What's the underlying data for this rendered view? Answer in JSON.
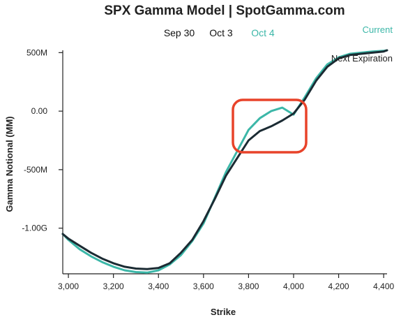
{
  "colors": {
    "current": "#3cb7a8",
    "next_expiration": "#1b2b33",
    "highlight": "#e8432a",
    "date_default": "#111111",
    "date_active": "#3cb7a8"
  },
  "header": {
    "title": "SPX Gamma Model | SpotGamma.com",
    "dates": [
      "Sep 30",
      "Oct 3",
      "Oct 4"
    ],
    "active_date": "Oct 4"
  },
  "chart_data": {
    "type": "line",
    "title": "SPX Gamma Model | SpotGamma.com",
    "xlabel": "Strike",
    "ylabel": "Gamma Notional (MM)",
    "xlim": [
      2975,
      4415
    ],
    "ylim": [
      -1390,
      520
    ],
    "x_ticks": [
      3000,
      3200,
      3400,
      3600,
      3800,
      4000,
      4200,
      4400
    ],
    "x_tick_labels": [
      "3,000",
      "3,200",
      "3,400",
      "3,600",
      "3,800",
      "4,000",
      "4,200",
      "4,400"
    ],
    "y_ticks": [
      500,
      0,
      -500,
      -1000
    ],
    "y_tick_labels": [
      "500M",
      "0.00",
      "-500M",
      "-1.00G"
    ],
    "legend": [
      "Current",
      "Next Expiration"
    ],
    "legend_position": "top-right",
    "series": [
      {
        "name": "Current",
        "x": [
          2975,
          3000,
          3050,
          3100,
          3150,
          3200,
          3250,
          3300,
          3350,
          3400,
          3450,
          3500,
          3550,
          3600,
          3650,
          3700,
          3750,
          3800,
          3850,
          3900,
          3950,
          4000,
          4050,
          4100,
          4150,
          4200,
          4250,
          4300,
          4350,
          4400,
          4415
        ],
        "y": [
          -1050,
          -1100,
          -1180,
          -1240,
          -1290,
          -1330,
          -1360,
          -1375,
          -1380,
          -1360,
          -1310,
          -1230,
          -1110,
          -960,
          -740,
          -520,
          -340,
          -160,
          -60,
          0,
          30,
          -30,
          120,
          280,
          400,
          460,
          490,
          500,
          510,
          515,
          520
        ]
      },
      {
        "name": "Next Expiration",
        "x": [
          2975,
          3000,
          3050,
          3100,
          3150,
          3200,
          3250,
          3300,
          3350,
          3400,
          3450,
          3500,
          3550,
          3600,
          3650,
          3700,
          3750,
          3800,
          3850,
          3900,
          3950,
          4000,
          4050,
          4100,
          4150,
          4200,
          4250,
          4300,
          4350,
          4400,
          4415
        ],
        "y": [
          -1050,
          -1090,
          -1150,
          -1210,
          -1260,
          -1300,
          -1330,
          -1345,
          -1350,
          -1340,
          -1300,
          -1210,
          -1100,
          -940,
          -750,
          -550,
          -400,
          -250,
          -170,
          -130,
          -80,
          -20,
          100,
          260,
          380,
          450,
          480,
          490,
          500,
          510,
          520
        ]
      }
    ]
  }
}
